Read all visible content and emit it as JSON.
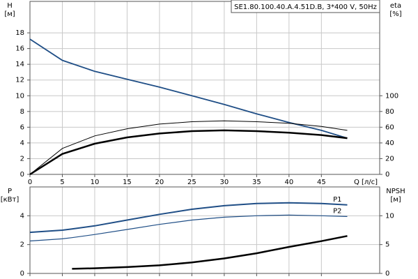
{
  "chart_data": [
    {
      "type": "line",
      "title": "SE1.80.100.40.A.4.51D.B, 3*400 V, 50Hz",
      "ylabel": [
        "H",
        "[м]"
      ],
      "y2label": [
        "eta",
        "[%]"
      ],
      "xlabel": "Q [л/с]",
      "x": [
        0,
        5,
        10,
        15,
        20,
        25,
        30,
        35,
        40,
        45,
        49
      ],
      "xlim": [
        0,
        54
      ],
      "xticks": [
        0,
        5,
        10,
        15,
        20,
        25,
        30,
        35,
        40,
        45
      ],
      "ylim": [
        0,
        22
      ],
      "yticks": [
        0,
        2,
        4,
        6,
        8,
        10,
        12,
        14,
        16,
        18
      ],
      "y2lim": [
        0,
        220
      ],
      "y2ticks": [
        0,
        20,
        40,
        60,
        80,
        100
      ],
      "grid": true,
      "series": [
        {
          "color": "#1f4e86",
          "values": [
            17.2,
            14.5,
            13.1,
            12.1,
            11.1,
            10.0,
            8.9,
            7.7,
            6.6,
            5.6,
            4.6
          ]
        },
        {
          "color": "#000000",
          "axis": "y2",
          "values": [
            0,
            33,
            49,
            58,
            64,
            67,
            68,
            67,
            65,
            61,
            56
          ]
        },
        {
          "color": "#000000",
          "axis": "y2",
          "values": [
            0,
            26,
            39,
            47,
            52,
            55,
            56,
            55,
            53,
            50,
            46
          ]
        }
      ]
    },
    {
      "type": "line",
      "ylabel": [
        "P",
        "[кВт]"
      ],
      "y2label": [
        "NPSH",
        "[м]"
      ],
      "x": [
        0,
        5,
        6.5,
        10,
        15,
        20,
        25,
        30,
        35,
        40,
        45,
        49
      ],
      "xlim": [
        0,
        54
      ],
      "xticks": [
        0,
        5,
        10,
        15,
        20,
        25,
        30,
        35,
        40,
        45
      ],
      "xtick_labels": false,
      "ylim": [
        0,
        6
      ],
      "yticks": [
        0,
        2,
        4
      ],
      "y2lim": [
        0,
        15
      ],
      "y2ticks": [
        0,
        5,
        10
      ],
      "grid": true,
      "series": [
        {
          "name": "P1",
          "color": "#1f4e86",
          "values": [
            2.85,
            3.0,
            3.08,
            3.3,
            3.7,
            4.1,
            4.45,
            4.7,
            4.85,
            4.9,
            4.85,
            4.75
          ]
        },
        {
          "name": "P2",
          "color": "#1f4e86",
          "values": [
            2.25,
            2.4,
            2.48,
            2.7,
            3.05,
            3.4,
            3.7,
            3.9,
            4.0,
            4.05,
            4.0,
            3.95
          ]
        },
        {
          "color": "#000000",
          "axis": "y2",
          "values": [
            null,
            null,
            0.8,
            0.9,
            1.1,
            1.4,
            1.9,
            2.6,
            3.5,
            4.6,
            5.6,
            6.5
          ]
        }
      ]
    }
  ]
}
